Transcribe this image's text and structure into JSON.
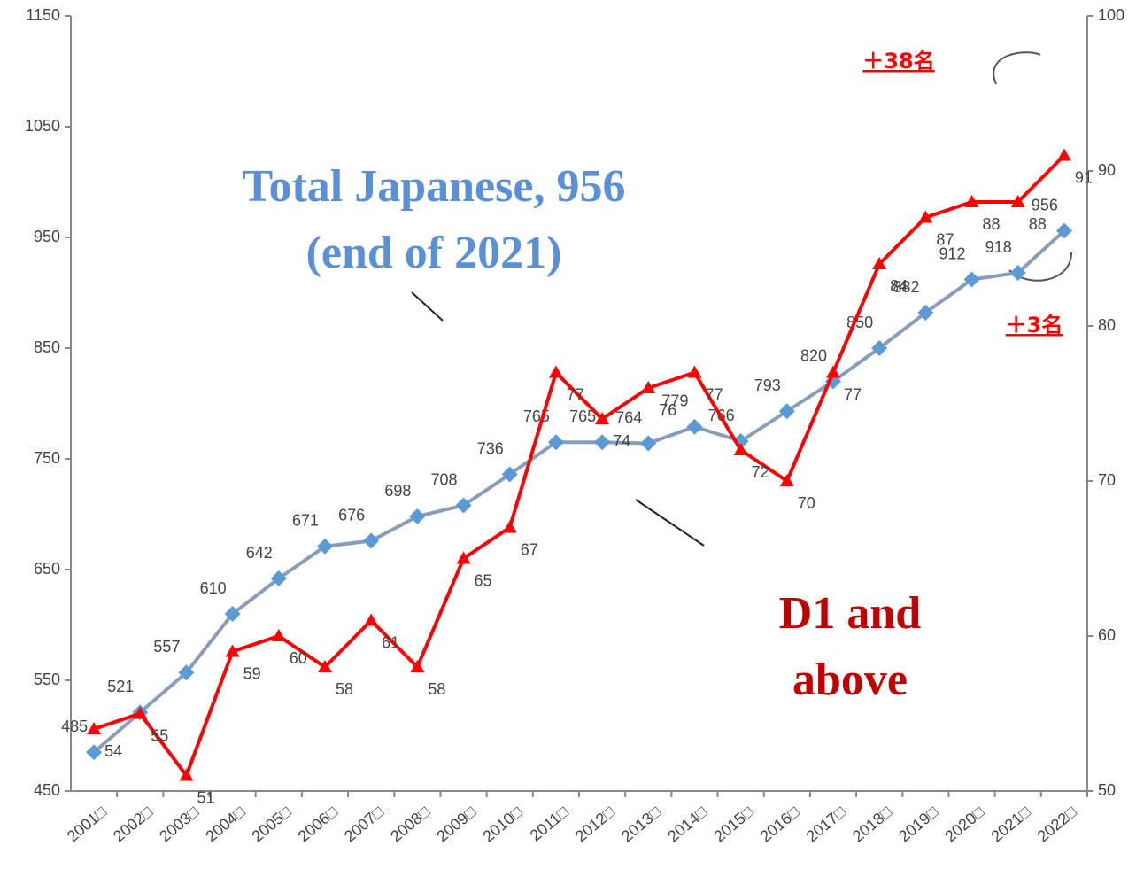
{
  "chart_data": {
    "type": "line",
    "categories": [
      "2001□",
      "2002□",
      "2003□",
      "2004□",
      "2005□",
      "2006□",
      "2007□",
      "2008□",
      "2009□",
      "2010□",
      "2011□",
      "2012□",
      "2013□",
      "2014□",
      "2015□",
      "2016□",
      "2017□",
      "2018□",
      "2019□",
      "2020□",
      "2021□",
      "2022□"
    ],
    "series": [
      {
        "color": "#8a9db8",
        "marker_color": "#5b9bd5",
        "values": [
          485,
          521,
          557,
          610,
          642,
          671,
          676,
          698,
          708,
          736,
          765,
          765,
          764,
          779,
          766,
          793,
          820,
          850,
          882,
          912,
          918,
          956
        ]
      },
      {
        "color": "#ff0000",
        "axis": "y2",
        "values": [
          54,
          55,
          51,
          59,
          60,
          58,
          61,
          58,
          65,
          67,
          77,
          74,
          76,
          77,
          72,
          70,
          77,
          84,
          87,
          88,
          88,
          91
        ]
      }
    ],
    "ylim": [
      450,
      1150
    ],
    "yticks": [
      450,
      550,
      650,
      750,
      850,
      950,
      1050,
      1150
    ],
    "y2lim": [
      50,
      100
    ],
    "y2ticks": [
      50,
      60,
      70,
      80,
      90,
      100
    ],
    "annotations": [
      "Total Japanese, 956",
      "(end of 2021)",
      "D1 and",
      "above",
      "＋38名",
      "＋3名"
    ]
  }
}
